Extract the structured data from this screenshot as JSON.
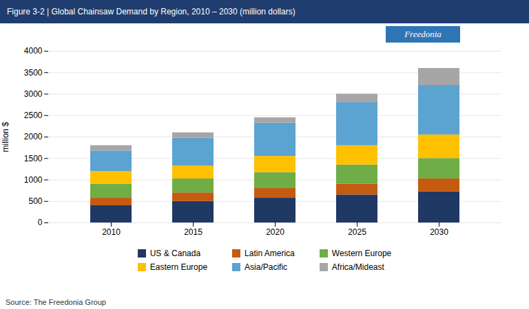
{
  "chart_data": {
    "type": "bar",
    "stacked": true,
    "title": "Figure 3-2  |  Global Chainsaw Demand by Region, 2010 – 2030 (million dollars)",
    "caption": "Source: The Freedonia Group",
    "annotations": [
      "Freedonia"
    ],
    "categories": [
      "2010",
      "2015",
      "2020",
      "2025",
      "2030"
    ],
    "series": [
      {
        "name": "US & Canada",
        "color": "#1f3864",
        "values": [
          400,
          500,
          575,
          650,
          725
        ]
      },
      {
        "name": "Latin America",
        "color": "#c55a11",
        "values": [
          175,
          200,
          225,
          250,
          300
        ]
      },
      {
        "name": "Western Europe",
        "color": "#70ad47",
        "values": [
          325,
          325,
          375,
          450,
          475
        ]
      },
      {
        "name": "Eastern Europe",
        "color": "#ffc000",
        "values": [
          300,
          300,
          375,
          450,
          550
        ]
      },
      {
        "name": "Asia/Pacific",
        "color": "#5ba3d0",
        "values": [
          475,
          650,
          775,
          1000,
          1150
        ]
      },
      {
        "name": "Africa/Mideast",
        "color": "#a6a6a6",
        "values": [
          125,
          125,
          125,
          200,
          400
        ]
      }
    ],
    "ylabel": "million $",
    "ylim": [
      0,
      4000
    ],
    "yticks": [
      0,
      500,
      1000,
      1500,
      2000,
      2500,
      3000,
      3500,
      4000
    ],
    "grid": true,
    "legend": "bottom"
  }
}
